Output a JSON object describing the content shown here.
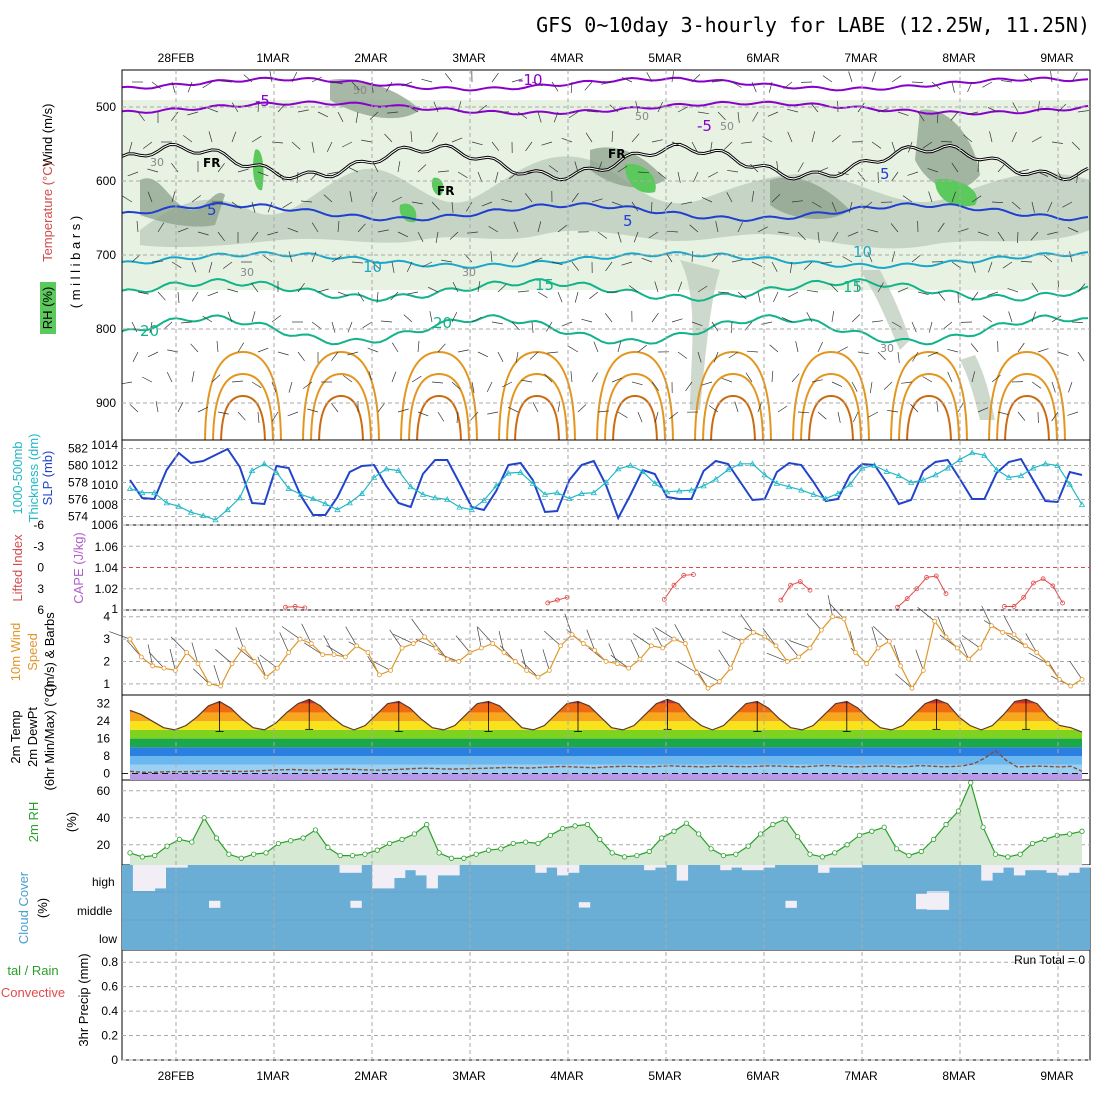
{
  "title": "GFS 0~10day 3-hourly for LABE (12.25W, 11.25N)",
  "colors": {
    "purple": "#8800cc",
    "darkblue": "#1f3fd0",
    "cyan": "#1aa7c8",
    "teal": "#12b38a",
    "orange": "#e3961e",
    "magenta": "#d0107a",
    "rh_light": "#e7f2e3",
    "rh_mid": "#b9c9b9",
    "rh_dark": "#8aa08a",
    "rh_green": "#5cc95c",
    "cloud_blue": "#6aaed6",
    "cloud_white": "#f2eef6",
    "cape_red": "#e24a4a",
    "wind_orange": "#e0962a",
    "rh2m_green": "#2aa02a",
    "slp_blue": "#2244cc",
    "thick_cyan": "#22b8c8",
    "dewpt_brown": "#8b4a3a"
  },
  "x_axis": {
    "top_labels": [
      "28FEB",
      "1MAR",
      "2MAR",
      "3MAR",
      "4MAR",
      "5MAR",
      "6MAR",
      "7MAR",
      "8MAR",
      "9MAR"
    ],
    "bottom_labels": [
      "28FEB",
      "1MAR",
      "2MAR",
      "3MAR",
      "4MAR",
      "5MAR",
      "6MAR",
      "7MAR",
      "8MAR",
      "9MAR"
    ]
  },
  "panel_labels": {
    "upper_wind": "Wind (m/s)",
    "upper_temp": "Temperature (°C)",
    "upper_rh": "RH (%)",
    "upper_mb": "( m i l l i b a r s )",
    "thick_a": "1000-500mb",
    "thick_b": "Thickness (dm)",
    "slp": "SLP (mb)",
    "li": "Lifted Index",
    "cape": "CAPE (J/kg)",
    "wind10_a": "10m Wind",
    "wind10_b": "Speed",
    "wind10_c": "(m/s) & Barbs",
    "temp_a": "2m Temp",
    "temp_b": "2m DewPt",
    "temp_c": "(6hr Min/Max) (°C)",
    "rh2m_a": "2m RH",
    "rh2m_b": "(%)",
    "cloud_a": "Cloud Cover",
    "cloud_b": "(%)",
    "precip_a": "tal / Rain",
    "precip_b": "Convective",
    "precip_c": "3hr Precip (mm)",
    "cloud_high": "high",
    "cloud_middle": "middle",
    "cloud_low": "low",
    "run_total": "Run Total = 0"
  },
  "contour_labels": {
    "purple": [
      "-10",
      "-5",
      "-5"
    ],
    "darkblue": [
      "5",
      "5",
      "5"
    ],
    "cyan": [
      "10",
      "10"
    ],
    "teal": [
      "15",
      "15",
      "20",
      "20"
    ],
    "gray": [
      "30",
      "30",
      "30",
      "30",
      "50",
      "50",
      "50"
    ],
    "fr": [
      "FR",
      "FR",
      "FR"
    ]
  },
  "chart_data": [
    {
      "type": "area",
      "name": "upper-air cross-section",
      "yticks": [
        "500",
        "600",
        "700",
        "800",
        "900"
      ],
      "note_contours": [
        "-10",
        "-5",
        "5",
        "10",
        "15",
        "20"
      ]
    },
    {
      "type": "line",
      "name": "thickness and slp",
      "yticks_left": [
        "582",
        "580",
        "578",
        "576",
        "574"
      ],
      "yticks_right": [
        "1014",
        "1012",
        "1010",
        "1008",
        "1006"
      ],
      "ylim_left": [
        573,
        583
      ],
      "ylim_right": [
        1006,
        1014.5
      ],
      "series": [
        {
          "name": "SLP (mb)",
          "values": [
            1010.5,
            1008.7,
            1008.6,
            1011.5,
            1013.2,
            1012.2,
            1012.4,
            1013.0,
            1013.6,
            1011.8,
            1008.2,
            1008.1,
            1011.9,
            1011.7,
            1008.9,
            1007.0,
            1007.0,
            1008.8,
            1011.3,
            1011.9,
            1012.0,
            1009.9,
            1008.2,
            1007.8,
            1011.1,
            1012.5,
            1012.5,
            1010.2,
            1007.8,
            1007.5,
            1009.4,
            1012.0,
            1012.2,
            1010.5,
            1007.3,
            1007.4,
            1010.5,
            1012.0,
            1012.4,
            1010.0,
            1006.7,
            1009.0,
            1011.5,
            1011.1,
            1008.8,
            1008.6,
            1008.6,
            1011.4,
            1012.4,
            1012.1,
            1010.3,
            1008.5,
            1008.6,
            1011.3,
            1012.2,
            1012.0,
            1010.3,
            1008.4,
            1008.6,
            1011.0,
            1012.1,
            1012.0,
            1010.2,
            1008.1,
            1008.5,
            1011.4,
            1012.3,
            1012.5,
            1010.6,
            1008.6,
            1008.6,
            1011.2,
            1012.3,
            1012.6,
            1010.5,
            1008.4,
            1008.3,
            1011.3,
            1011.0
          ]
        },
        {
          "name": "1000-500mb Thickness (dm)",
          "values": [
            577.3,
            576.8,
            576.8,
            575.6,
            575.2,
            574.5,
            574.1,
            573.6,
            574.8,
            576.2,
            579.4,
            580.2,
            579.2,
            577.3,
            576.6,
            576.1,
            575.5,
            574.8,
            575.6,
            576.7,
            578.6,
            579.6,
            579.4,
            577.5,
            576.6,
            576.2,
            576.0,
            575.1,
            574.8,
            575.9,
            577.6,
            579.1,
            579.2,
            577.9,
            576.6,
            576.8,
            576.1,
            576.7,
            576.8,
            578.0,
            579.6,
            580.0,
            579.3,
            577.9,
            576.9,
            577.0,
            577.1,
            577.6,
            578.4,
            579.5,
            580.2,
            580.2,
            578.9,
            577.9,
            577.5,
            577.1,
            576.6,
            576.1,
            576.7,
            577.8,
            579.7,
            580.0,
            579.3,
            578.8,
            578.0,
            578.3,
            578.9,
            579.7,
            580.7,
            581.5,
            581.2,
            579.5,
            578.6,
            578.8,
            579.7,
            580.2,
            580.0,
            577.8,
            575.4
          ]
        }
      ]
    },
    {
      "type": "line",
      "name": "lifted index and cape",
      "yticks_left": [
        "-6",
        "-3",
        "0",
        "3",
        "6"
      ],
      "yticks_right": [
        "1.06",
        "1.04",
        "1.02",
        "1"
      ],
      "ylim_left": [
        -6,
        6
      ],
      "series": [
        {
          "name": "Lifted Index",
          "values": [
            null,
            null,
            null,
            null,
            null,
            null,
            null,
            null,
            null,
            null,
            null,
            null,
            null,
            null,
            null,
            null,
            5.6,
            5.5,
            5.7,
            null,
            null,
            null,
            null,
            null,
            null,
            null,
            null,
            null,
            null,
            null,
            null,
            null,
            null,
            null,
            null,
            null,
            null,
            null,
            null,
            null,
            null,
            null,
            null,
            5.0,
            4.6,
            4.2,
            null,
            null,
            null,
            null,
            null,
            null,
            null,
            null,
            null,
            4.5,
            2.5,
            1.1,
            1.0,
            null,
            null,
            null,
            null,
            null,
            null,
            null,
            null,
            4.6,
            2.5,
            2.0,
            3.2,
            null,
            null,
            null,
            null,
            null,
            null,
            null,
            null,
            5.6,
            4.4,
            3.0,
            1.4,
            1.2,
            3.7,
            null,
            null,
            null,
            null,
            null,
            5.5,
            5.5,
            4.2,
            2.2,
            1.6,
            2.6,
            5.0,
            null,
            null
          ]
        }
      ]
    },
    {
      "type": "line",
      "name": "10m wind speed",
      "yticks": [
        "4",
        "3",
        "2",
        "1"
      ],
      "ylim": [
        0.5,
        4.3
      ],
      "series": [
        {
          "name": "10m Wind Speed (m/s)",
          "values": [
            3.0,
            2.2,
            1.8,
            1.7,
            1.6,
            2.4,
            1.9,
            1.0,
            0.9,
            1.9,
            2.6,
            2.0,
            1.3,
            1.7,
            2.4,
            3.0,
            2.8,
            2.3,
            2.3,
            2.2,
            2.7,
            2.4,
            1.4,
            1.6,
            2.6,
            2.8,
            3.1,
            2.6,
            2.1,
            2.0,
            2.4,
            2.6,
            2.8,
            2.4,
            2.0,
            1.6,
            1.3,
            1.6,
            2.7,
            3.2,
            2.8,
            2.5,
            2.0,
            1.9,
            1.7,
            2.1,
            2.7,
            2.6,
            3.0,
            2.8,
            1.5,
            0.8,
            1.1,
            1.7,
            2.9,
            3.3,
            3.1,
            2.7,
            2.0,
            2.2,
            2.6,
            3.4,
            4.0,
            3.9,
            2.4,
            1.9,
            2.6,
            2.9,
            1.8,
            0.8,
            1.6,
            3.8,
            3.1,
            2.6,
            2.1,
            2.6,
            3.6,
            3.3,
            3.2,
            2.7,
            2.4,
            1.9,
            1.2,
            0.9,
            1.2
          ]
        }
      ]
    },
    {
      "type": "area",
      "name": "2m temperature and dewpoint",
      "yticks": [
        "32",
        "24",
        "16",
        "8",
        "0"
      ],
      "ylim": [
        -3,
        36
      ],
      "series": [
        {
          "name": "2m Temp",
          "values": [
            29,
            27,
            24,
            21,
            20,
            22,
            26,
            31,
            33,
            30,
            25,
            21,
            20,
            23,
            28,
            32,
            34,
            31,
            26,
            22,
            20,
            22,
            27,
            32,
            33,
            30,
            25,
            21,
            20,
            22,
            27,
            32,
            33,
            31,
            26,
            21,
            20,
            22,
            27,
            32,
            33,
            31,
            26,
            21,
            20,
            22,
            27,
            32,
            34,
            32,
            26,
            22,
            20,
            22,
            27,
            32,
            33,
            30,
            25,
            21,
            20,
            22,
            27,
            32,
            33,
            30,
            25,
            21,
            20,
            22,
            27,
            32,
            34,
            32,
            26,
            22,
            20,
            22,
            27,
            33,
            34,
            32,
            26,
            22,
            21,
            19
          ]
        },
        {
          "name": "2m DewPt",
          "values": [
            1.0,
            0.6,
            0.5,
            0.7,
            0.8,
            0.8,
            0.9,
            1.1,
            1.2,
            1.0,
            0.9,
            1.0,
            1.2,
            1.5,
            1.7,
            1.8,
            1.6,
            1.4,
            1.6,
            1.9,
            2.0,
            1.8,
            1.6,
            1.5,
            1.7,
            1.9,
            2.2,
            2.4,
            2.3,
            2.1,
            2.0,
            2.2,
            2.3,
            2.4,
            2.6,
            2.8,
            2.6,
            2.5,
            2.8,
            3.0,
            3.2,
            3.0,
            2.8,
            2.6,
            3.0,
            3.2,
            3.3,
            3.1,
            3.0,
            3.3,
            3.5,
            3.3,
            3.2,
            3.0,
            3.3,
            3.4,
            3.2,
            3.1,
            3.3,
            3.5,
            3.4,
            3.2,
            3.0,
            3.3,
            3.6,
            3.5,
            3.2,
            3.0,
            3.2,
            3.4,
            3.4,
            3.0,
            3.2,
            3.6,
            3.4,
            3.1,
            3.2,
            3.5,
            4.5,
            7.0,
            10.5,
            6.0,
            3.0,
            3.2,
            3.4,
            3.2,
            3.0,
            3.3,
            1.0
          ]
        }
      ]
    },
    {
      "type": "area",
      "name": "2m relative humidity",
      "yticks": [
        "60",
        "40",
        "20"
      ],
      "ylim": [
        5,
        68
      ],
      "series": [
        {
          "name": "2m RH (%)",
          "values": [
            14,
            11,
            12,
            19,
            24,
            22,
            40,
            25,
            13,
            10,
            13,
            14,
            21,
            23,
            25,
            31,
            18,
            12,
            12,
            13,
            16,
            21,
            24,
            28,
            35,
            14,
            10,
            10,
            13,
            16,
            17,
            21,
            22,
            21,
            27,
            32,
            34,
            35,
            24,
            14,
            11,
            12,
            15,
            25,
            30,
            36,
            28,
            17,
            12,
            13,
            19,
            28,
            35,
            39,
            26,
            13,
            11,
            14,
            20,
            27,
            30,
            33,
            17,
            12,
            15,
            24,
            35,
            45,
            66,
            33,
            13,
            11,
            13,
            21,
            24,
            27,
            28,
            30
          ]
        }
      ]
    },
    {
      "type": "bar",
      "name": "cloud cover",
      "yticks": [
        "high",
        "middle",
        "low"
      ],
      "series": [
        {
          "name": "high",
          "values": [
            0,
            1.0,
            1.0,
            0.9,
            0.1,
            0.1,
            0,
            0,
            0,
            0,
            0,
            0,
            0,
            0,
            0,
            0,
            0,
            0,
            0,
            0,
            0.3,
            0.3,
            0,
            0.9,
            0.9,
            0.5,
            0.2,
            0.4,
            0.9,
            0.4,
            0.4,
            0,
            0,
            0,
            0,
            0,
            0,
            0,
            0.3,
            0.1,
            0.4,
            0.3,
            0,
            0,
            0,
            0,
            0,
            0,
            0.2,
            0.1,
            0,
            0.6,
            0,
            0,
            0,
            0.2,
            0.1,
            0.2,
            0.2,
            0.1,
            0,
            0,
            0,
            0,
            0.3,
            0.1,
            0.1,
            0.1,
            0,
            0,
            0,
            0,
            0,
            0,
            0,
            0,
            0,
            0,
            0,
            0.6,
            0.3,
            0.1,
            0.4,
            0.2,
            0.2,
            0.3,
            0.4,
            0.3,
            0.1
          ]
        },
        {
          "name": "middle",
          "values": [
            0,
            0,
            0,
            0,
            0,
            0,
            0,
            0,
            0.3,
            0,
            0,
            0,
            0,
            0,
            0,
            0,
            0,
            0,
            0,
            0,
            0,
            0.3,
            0,
            0,
            0,
            0,
            0,
            0,
            0,
            0,
            0,
            0,
            0,
            0,
            0,
            0,
            0,
            0,
            0,
            0,
            0,
            0,
            0.2,
            0,
            0,
            0,
            0,
            0,
            0,
            0,
            0,
            0,
            0,
            0,
            0,
            0,
            0,
            0,
            0,
            0,
            0,
            0.3,
            0,
            0,
            0,
            0,
            0,
            0,
            0,
            0,
            0,
            0,
            0,
            0.8,
            1.0,
            1.0,
            0,
            0,
            0,
            0,
            0,
            0,
            0,
            0,
            0,
            0,
            0,
            0,
            0
          ]
        }
      ]
    },
    {
      "type": "bar",
      "name": "3hr precip",
      "yticks": [
        "0.8",
        "0.6",
        "0.4",
        "0.2",
        "0"
      ],
      "ylim": [
        0,
        0.9
      ],
      "series": [
        {
          "name": "3hr Precip (mm)",
          "values": []
        }
      ]
    }
  ]
}
